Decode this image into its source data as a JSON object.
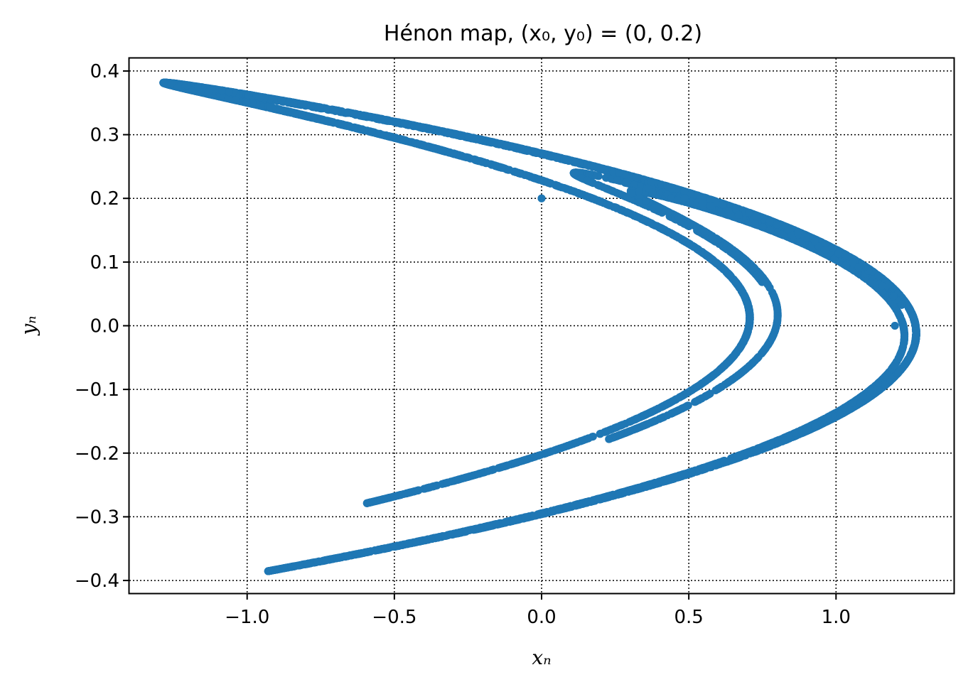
{
  "chart_data": {
    "type": "scatter",
    "title": "Hénon map,  (x₀, y₀) = (0, 0.2)",
    "xlabel": "xₙ",
    "ylabel": "yₙ",
    "xlim": [
      -1.4,
      1.4
    ],
    "ylim": [
      -0.42,
      0.42
    ],
    "xticks": [
      -1.0,
      -0.5,
      0.0,
      0.5,
      1.0
    ],
    "xtick_labels": [
      "−1.0",
      "−0.5",
      "0.0",
      "0.5",
      "1.0"
    ],
    "yticks": [
      0.4,
      0.3,
      0.2,
      0.1,
      0.0,
      -0.1,
      -0.2,
      -0.3,
      -0.4
    ],
    "ytick_labels": [
      "0.4",
      "0.3",
      "0.2",
      "0.1",
      "0.0",
      "−0.1",
      "−0.2",
      "−0.3",
      "−0.4"
    ],
    "grid": "dotted",
    "marker_color": "#1f77b4",
    "map": {
      "a": 1.4,
      "b": 0.3,
      "x0": 0,
      "y0": 0.2,
      "iterations": 9000
    },
    "highlighted_points": [
      {
        "x": 0.0,
        "y": 0.2
      },
      {
        "x": 1.2,
        "y": 0.0
      }
    ]
  }
}
